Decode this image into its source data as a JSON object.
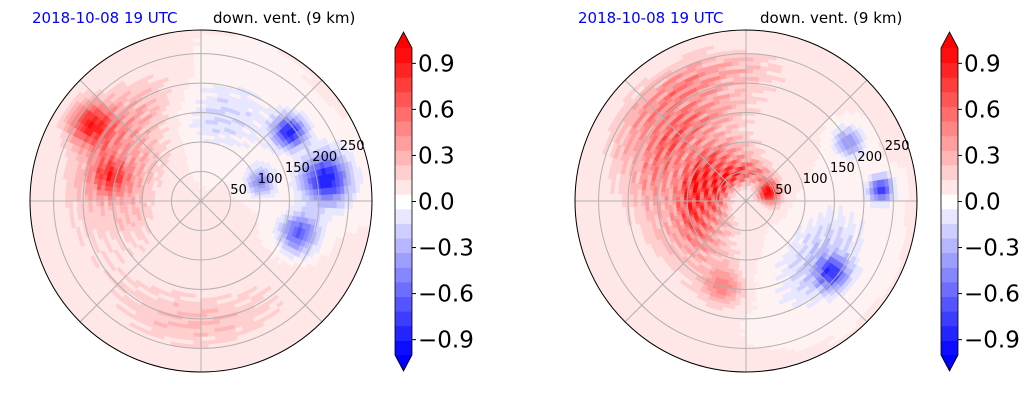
{
  "chart_data": [
    {
      "type": "heatmap",
      "projection": "polar",
      "date_label": "2018-10-08 19 UTC",
      "title": "down. vent. (9 km)",
      "date_color": "#0000ff",
      "radial_ticks": [
        50,
        100,
        150,
        200,
        250
      ],
      "angular_gridlines_deg": [
        0,
        45,
        90,
        135,
        180,
        225,
        270,
        315
      ],
      "colorbar": {
        "ticks": [
          "0.9",
          "0.6",
          "0.3",
          "0.0",
          "−0.3",
          "−0.6",
          "−0.9"
        ],
        "tick_values": [
          0.9,
          0.6,
          0.3,
          0.0,
          -0.3,
          -0.6,
          -0.9
        ],
        "range": [
          -1.0,
          1.0
        ],
        "extend": "both",
        "colormap": "bwr",
        "levels": 21
      },
      "features": [
        {
          "kind": "arc-band",
          "value": 0.45,
          "r0": 150,
          "r1": 220,
          "a0": 110,
          "a1": 175
        },
        {
          "kind": "arc-band",
          "value": 0.3,
          "r0": 90,
          "r1": 150,
          "a0": 130,
          "a1": 200
        },
        {
          "kind": "arc-band",
          "value": 0.25,
          "r0": 170,
          "r1": 240,
          "a0": 235,
          "a1": 300
        },
        {
          "kind": "arc-band",
          "value": -0.3,
          "r0": 110,
          "r1": 200,
          "a0": 55,
          "a1": 105
        },
        {
          "kind": "blob",
          "value": -0.95,
          "r": 215,
          "a": 10,
          "s": 28
        },
        {
          "kind": "blob",
          "value": -0.9,
          "r": 190,
          "a": 38,
          "s": 18
        },
        {
          "kind": "blob",
          "value": -0.7,
          "r": 175,
          "a": 342,
          "s": 22
        },
        {
          "kind": "blob",
          "value": -0.5,
          "r": 105,
          "a": 18,
          "s": 16
        },
        {
          "kind": "blob",
          "value": 0.7,
          "r": 230,
          "a": 145,
          "s": 24
        },
        {
          "kind": "blob",
          "value": 0.5,
          "r": 160,
          "a": 165,
          "s": 20
        }
      ]
    },
    {
      "type": "heatmap",
      "projection": "polar",
      "date_label": "2018-10-08 19 UTC",
      "title": "down. vent. (9 km)",
      "date_color": "#0000ff",
      "radial_ticks": [
        50,
        100,
        150,
        200,
        250
      ],
      "angular_gridlines_deg": [
        0,
        45,
        90,
        135,
        180,
        225,
        270,
        315
      ],
      "colorbar": {
        "ticks": [
          "0.9",
          "0.6",
          "0.3",
          "0.0",
          "−0.3",
          "−0.6",
          "−0.9"
        ],
        "tick_values": [
          0.9,
          0.6,
          0.3,
          0.0,
          -0.3,
          -0.6,
          -0.9
        ],
        "range": [
          -1.0,
          1.0
        ],
        "extend": "both",
        "colormap": "bwr",
        "levels": 21
      },
      "features": [
        {
          "kind": "arc-band",
          "value": 0.95,
          "r0": 70,
          "r1": 110,
          "a0": 120,
          "a1": 205
        },
        {
          "kind": "arc-band",
          "value": 0.9,
          "r0": 35,
          "r1": 65,
          "a0": 70,
          "a1": 190
        },
        {
          "kind": "arc-band",
          "value": 0.7,
          "r0": 130,
          "r1": 190,
          "a0": 110,
          "a1": 170
        },
        {
          "kind": "arc-band",
          "value": 0.5,
          "r0": 200,
          "r1": 250,
          "a0": 95,
          "a1": 150
        },
        {
          "kind": "arc-band",
          "value": 0.3,
          "r0": 90,
          "r1": 160,
          "a0": 190,
          "a1": 240
        },
        {
          "kind": "arc-band",
          "value": -0.35,
          "r0": 120,
          "r1": 200,
          "a0": 300,
          "a1": 345
        },
        {
          "kind": "blob",
          "value": -0.7,
          "r": 190,
          "a": 320,
          "s": 18
        },
        {
          "kind": "blob",
          "value": -0.8,
          "r": 230,
          "a": 5,
          "s": 14
        },
        {
          "kind": "blob",
          "value": -0.5,
          "r": 200,
          "a": 30,
          "s": 16
        },
        {
          "kind": "blob",
          "value": 0.85,
          "r": 40,
          "a": 20,
          "s": 12
        },
        {
          "kind": "blob",
          "value": 0.4,
          "r": 150,
          "a": 255,
          "s": 22
        }
      ]
    }
  ]
}
